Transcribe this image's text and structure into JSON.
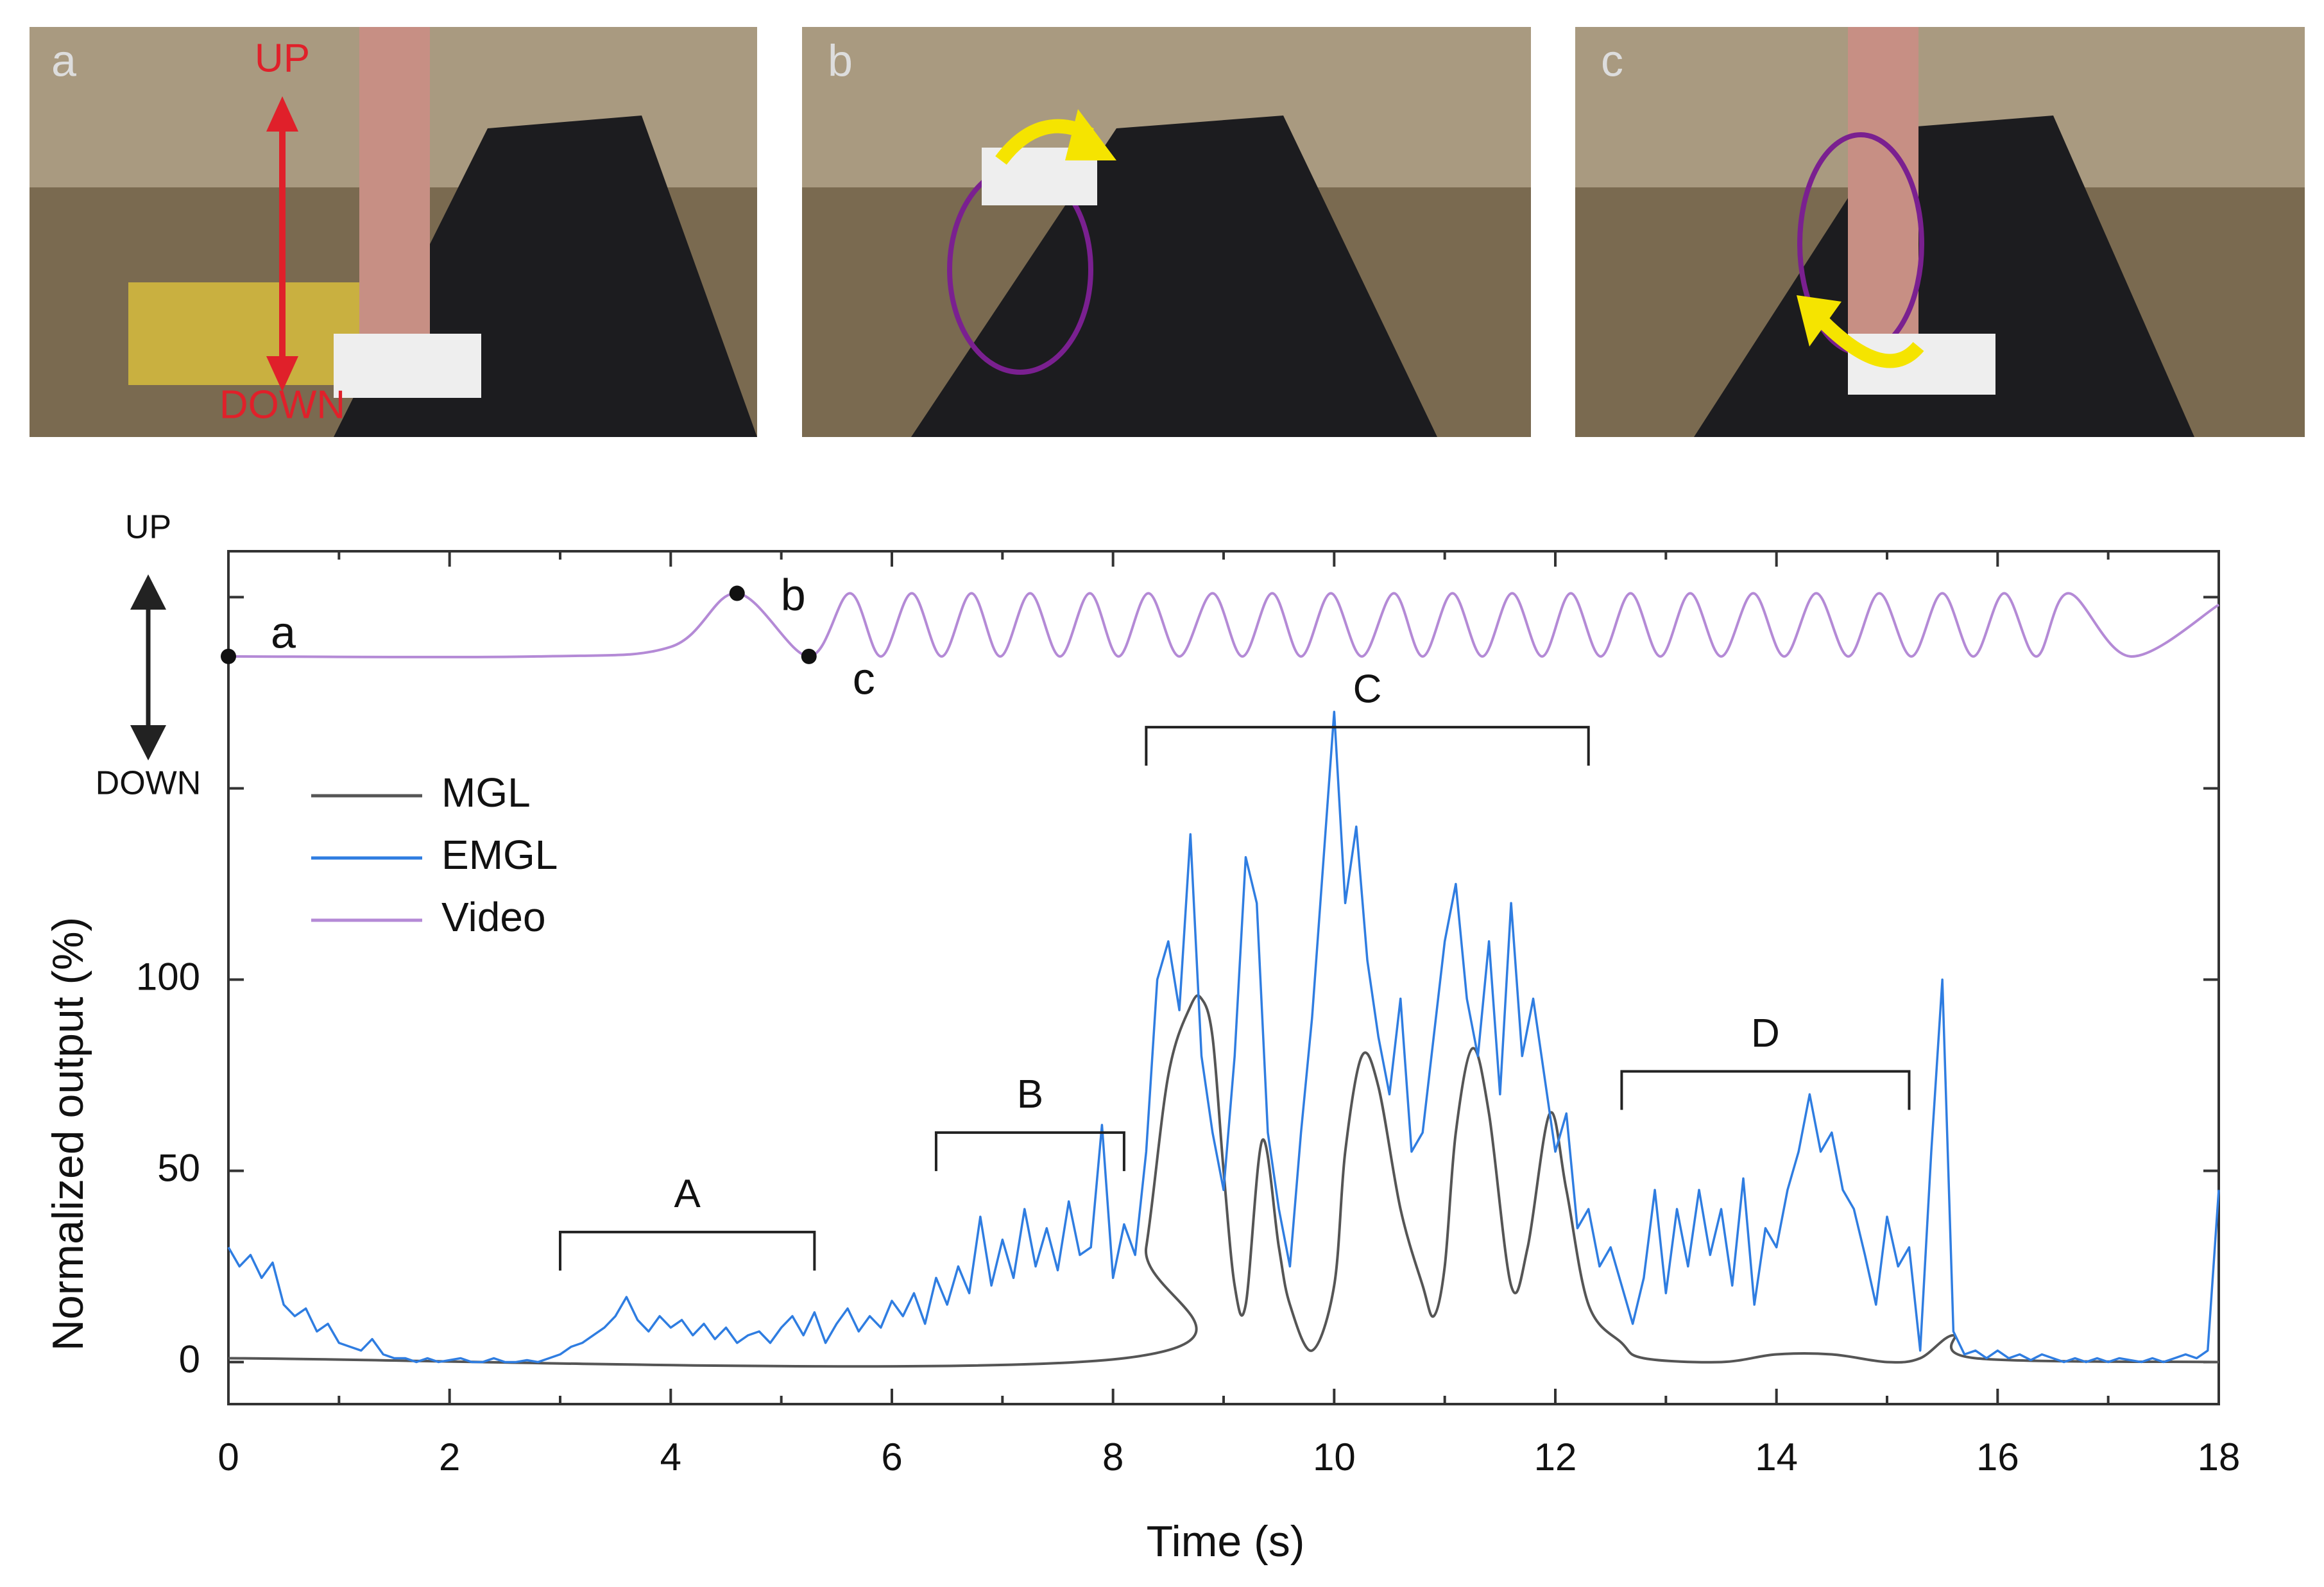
{
  "photos": [
    {
      "label": "a",
      "annotations": [
        "UP",
        "DOWN"
      ]
    },
    {
      "label": "b"
    },
    {
      "label": "c"
    }
  ],
  "chart_data": {
    "type": "line",
    "xlabel": "Time (s)",
    "ylabel": "Normalized output (%)",
    "video_axis_labels": [
      "UP",
      "DOWN"
    ],
    "xlim": [
      0,
      18
    ],
    "ylim": [
      -11,
      212
    ],
    "xticks": [
      0,
      2,
      4,
      6,
      8,
      10,
      12,
      14,
      16,
      18
    ],
    "xticks_unlabeled": [
      1,
      3,
      5,
      7,
      9,
      11,
      13,
      15,
      17
    ],
    "yticks": [
      0,
      50,
      100
    ],
    "yticks_unlabeled": [
      150,
      200
    ],
    "legend": "upper left",
    "x": [
      0,
      0.1,
      0.2,
      0.3,
      0.4,
      0.5,
      0.6,
      0.7,
      0.8,
      0.9,
      1,
      1.1,
      1.2,
      1.3,
      1.4,
      1.5,
      1.6,
      1.7,
      1.8,
      1.9,
      2,
      2.1,
      2.2,
      2.3,
      2.4,
      2.5,
      2.6,
      2.7,
      2.8,
      2.9,
      3,
      3.1,
      3.2,
      3.3,
      3.4,
      3.5,
      3.6,
      3.7,
      3.8,
      3.9,
      4,
      4.1,
      4.2,
      4.3,
      4.4,
      4.5,
      4.6,
      4.7,
      4.8,
      4.9,
      5,
      5.1,
      5.2,
      5.3,
      5.4,
      5.5,
      5.6,
      5.7,
      5.8,
      5.9,
      6,
      6.1,
      6.2,
      6.3,
      6.4,
      6.5,
      6.6,
      6.7,
      6.8,
      6.9,
      7,
      7.1,
      7.2,
      7.3,
      7.4,
      7.5,
      7.6,
      7.7,
      7.8,
      7.9,
      8,
      8.1,
      8.2,
      8.3,
      8.4,
      8.5,
      8.6,
      8.7,
      8.8,
      8.9,
      9,
      9.1,
      9.2,
      9.3,
      9.4,
      9.5,
      9.6,
      9.7,
      9.8,
      9.9,
      10,
      10.1,
      10.2,
      10.3,
      10.4,
      10.5,
      10.6,
      10.7,
      10.8,
      10.9,
      11,
      11.1,
      11.2,
      11.3,
      11.4,
      11.5,
      11.6,
      11.7,
      11.8,
      11.9,
      12,
      12.1,
      12.2,
      12.3,
      12.4,
      12.5,
      12.6,
      12.7,
      12.8,
      12.9,
      13,
      13.1,
      13.2,
      13.3,
      13.4,
      13.5,
      13.6,
      13.7,
      13.8,
      13.9,
      14,
      14.1,
      14.2,
      14.3,
      14.4,
      14.5,
      14.6,
      14.7,
      14.8,
      14.9,
      15,
      15.1,
      15.2,
      15.3,
      15.4,
      15.5,
      15.6,
      15.7,
      15.8,
      15.9,
      16,
      16.1,
      16.2,
      16.3,
      16.4,
      16.5,
      16.6,
      16.7,
      16.8,
      16.9,
      17,
      17.1,
      17.2,
      17.3,
      17.4,
      17.5,
      17.6,
      17.7,
      17.8,
      17.9,
      18
    ],
    "series": [
      {
        "name": "MGL",
        "color": "#555555",
        "x": [
          0,
          8.1,
          8.3,
          8.5,
          8.7,
          8.8,
          8.9,
          9.0,
          9.1,
          9.2,
          9.35,
          9.5,
          9.6,
          9.8,
          10.0,
          10.1,
          10.25,
          10.4,
          10.6,
          10.8,
          10.9,
          11.0,
          11.1,
          11.25,
          11.4,
          11.6,
          11.75,
          11.95,
          12.1,
          12.3,
          12.6,
          12.8,
          13.5,
          14.0,
          14.5,
          15.0,
          15.3,
          15.6,
          15.8,
          18
        ],
        "values": [
          1,
          1,
          30,
          75,
          93,
          95,
          85,
          50,
          20,
          15,
          58,
          30,
          15,
          3,
          20,
          55,
          80,
          72,
          40,
          20,
          12,
          25,
          60,
          82,
          65,
          20,
          30,
          65,
          45,
          15,
          5,
          1,
          0,
          2,
          2,
          0,
          1,
          7,
          1,
          0
        ]
      },
      {
        "name": "EMGL",
        "color": "#2f7de1",
        "values": [
          30,
          25,
          28,
          22,
          26,
          15,
          12,
          14,
          8,
          10,
          5,
          4,
          3,
          6,
          2,
          1,
          1,
          0,
          1,
          0,
          0.5,
          1,
          0,
          0,
          1,
          0,
          0,
          0.5,
          0,
          1,
          2,
          4,
          5,
          7,
          9,
          12,
          17,
          11,
          8,
          12,
          9,
          11,
          7,
          10,
          6,
          9,
          5,
          7,
          8,
          5,
          9,
          12,
          7,
          13,
          5,
          10,
          14,
          8,
          12,
          9,
          16,
          12,
          18,
          10,
          22,
          15,
          25,
          18,
          38,
          20,
          32,
          22,
          40,
          25,
          35,
          24,
          42,
          28,
          30,
          62,
          22,
          36,
          28,
          55,
          100,
          110,
          92,
          138,
          80,
          60,
          45,
          80,
          132,
          120,
          60,
          40,
          25,
          60,
          90,
          130,
          170,
          120,
          140,
          105,
          85,
          70,
          95,
          55,
          60,
          85,
          110,
          125,
          95,
          80,
          110,
          70,
          120,
          80,
          95,
          75,
          55,
          65,
          35,
          40,
          25,
          30,
          20,
          10,
          22,
          45,
          18,
          40,
          25,
          45,
          28,
          40,
          20,
          48,
          15,
          35,
          30,
          45,
          55,
          70,
          55,
          60,
          45,
          40,
          28,
          15,
          38,
          25,
          30,
          3,
          55,
          100,
          8,
          2,
          3,
          1,
          3,
          1,
          2,
          0.5,
          2,
          1,
          0,
          1,
          0,
          1,
          0,
          1,
          0.5,
          0,
          1,
          0,
          1,
          2,
          1,
          3,
          45
        ]
      },
      {
        "name": "Video",
        "color": "#b48ad6",
        "x": [
          0,
          2.8,
          4.0,
          4.6,
          5.25,
          5.62,
          5.9,
          6.18,
          6.45,
          6.72,
          6.98,
          7.25,
          7.52,
          7.79,
          8.05,
          8.32,
          8.6,
          8.9,
          9.17,
          9.44,
          9.7,
          9.97,
          10.25,
          10.54,
          10.8,
          11.07,
          11.34,
          11.61,
          11.88,
          12.14,
          12.41,
          12.68,
          12.95,
          13.22,
          13.5,
          13.79,
          14.07,
          14.36,
          14.65,
          14.93,
          15.22,
          15.5,
          15.78,
          16.06,
          16.35,
          16.64,
          17.2,
          18
        ],
        "values": [
          184.5,
          184.5,
          187,
          201,
          184.5,
          201,
          184.5,
          201,
          184.5,
          201,
          184.5,
          201,
          184.5,
          201,
          184.5,
          201,
          184.5,
          201,
          184.5,
          201,
          184.5,
          201,
          184.5,
          201,
          184.5,
          201,
          184.5,
          201,
          184.5,
          201,
          184.5,
          201,
          184.5,
          201,
          184.5,
          201,
          184.5,
          201,
          184.5,
          201,
          184.5,
          201,
          184.5,
          201,
          184.5,
          201,
          184.5,
          198
        ]
      }
    ],
    "points": [
      {
        "label": "a",
        "x": 0,
        "y": 184.5
      },
      {
        "label": "b",
        "x": 4.6,
        "y": 201
      },
      {
        "label": "c",
        "x": 5.25,
        "y": 184.5
      }
    ],
    "brackets": [
      {
        "text": "A",
        "x": [
          3,
          5.3
        ],
        "y": 34
      },
      {
        "text": "B",
        "x": [
          6.4,
          8.1
        ],
        "y": 60
      },
      {
        "text": "C",
        "x": [
          8.3,
          12.3
        ],
        "y": 166
      },
      {
        "text": "D",
        "x": [
          12.6,
          15.2
        ],
        "y": 76
      }
    ]
  }
}
